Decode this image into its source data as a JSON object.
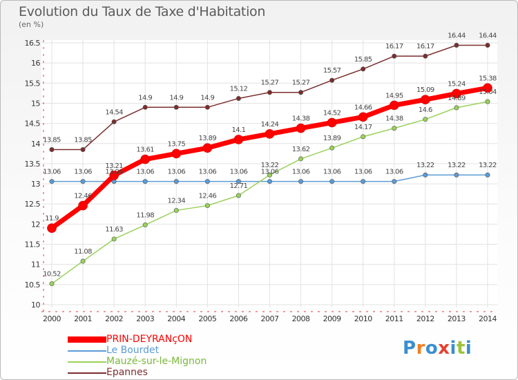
{
  "title": "Evolution du Taux de Taxe d'Habitation",
  "unit": "(en %)",
  "logo": {
    "letters": [
      "P",
      "r",
      "o",
      "x",
      "i",
      "t",
      "i"
    ],
    "colors": [
      "#3a8ed0",
      "#f07f23",
      "#3a8ed0",
      "#e8412f",
      "#3a8ed0",
      "#9bc43a",
      "#3a8ed0"
    ]
  },
  "chart_data": {
    "type": "line",
    "x": [
      2000,
      2001,
      2002,
      2003,
      2004,
      2005,
      2006,
      2007,
      2008,
      2009,
      2010,
      2011,
      2012,
      2013,
      2014
    ],
    "ylim": [
      10,
      16.5
    ],
    "yticks": [
      "10",
      "10.5",
      "11",
      "11.5",
      "12",
      "12.5",
      "13",
      "13.5",
      "14",
      "14.5",
      "15",
      "15.5",
      "16",
      "16.5"
    ],
    "grid": true,
    "legend_placement": "bottom-left",
    "series": [
      {
        "name": "PRIN-DEYRANçON",
        "color": "#ff0000",
        "values": [
          11.9,
          12.46,
          13.21,
          13.61,
          13.75,
          13.89,
          14.1,
          14.24,
          14.38,
          14.52,
          14.66,
          14.95,
          15.09,
          15.24,
          15.38
        ],
        "labels": [
          "11.9",
          "12.46",
          "13.21",
          "13.61",
          "13.75",
          "13.89",
          "14.1",
          "14.24",
          "14.38",
          "14.52",
          "14.66",
          "14.95",
          "15.09",
          "15.24",
          "15.38"
        ]
      },
      {
        "name": "Le Bourdet",
        "color": "#5b9bd5",
        "values": [
          13.06,
          13.06,
          13.06,
          13.06,
          13.06,
          13.06,
          13.06,
          13.06,
          13.06,
          13.06,
          13.06,
          13.06,
          13.22,
          13.22,
          13.22
        ],
        "labels": [
          "13.06",
          "13.06",
          "13.06",
          "13.06",
          "13.06",
          "13.06",
          "13.06",
          "13.06",
          "13.06",
          "13.06",
          "13.06",
          "13.06",
          "13.22",
          "13.22",
          "13.22"
        ]
      },
      {
        "name": "Mauzé-sur-le-Mignon",
        "color": "#99d15a",
        "values": [
          10.52,
          11.08,
          11.63,
          11.98,
          12.34,
          12.46,
          12.71,
          13.22,
          13.62,
          13.89,
          14.17,
          14.38,
          14.6,
          14.89,
          15.04
        ],
        "labels": [
          "10.52",
          "11.08",
          "11.63",
          "11.98",
          "12.34",
          "12.46",
          "12.71",
          "13.22",
          "13.62",
          "13.89",
          "14.17",
          "14.38",
          "14.6",
          "14.89",
          "15.04"
        ]
      },
      {
        "name": "Epannes",
        "color": "#7b2d2d",
        "values": [
          13.85,
          13.85,
          14.54,
          14.9,
          14.9,
          14.9,
          15.12,
          15.27,
          15.27,
          15.57,
          15.85,
          16.17,
          16.17,
          16.44,
          16.44
        ],
        "labels": [
          "13.85",
          "13.85",
          "14.54",
          "14.9",
          "14.9",
          "14.9",
          "15.12",
          "15.27",
          "15.27",
          "15.57",
          "15.85",
          "16.17",
          "16.17",
          "16.44",
          "16.44"
        ]
      }
    ]
  }
}
